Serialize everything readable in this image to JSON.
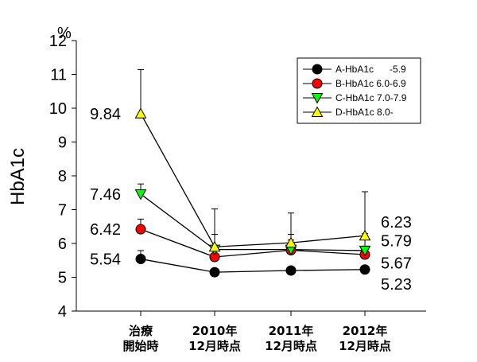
{
  "chart_data": {
    "type": "line",
    "ylabel": "HbA1c",
    "y_unit": "%",
    "ylim": [
      4,
      12
    ],
    "yticks": [
      4,
      5,
      6,
      7,
      8,
      9,
      10,
      11,
      12
    ],
    "categories": [
      [
        "治療",
        "開始時"
      ],
      [
        "2010年",
        "12月時点"
      ],
      [
        "2011年",
        "12月時点"
      ],
      [
        "2012年",
        "12月時点"
      ]
    ],
    "series": [
      {
        "name": "A-HbA1c      -5.9",
        "marker": "circle",
        "color": "#000000",
        "values": [
          5.54,
          5.15,
          5.2,
          5.23
        ],
        "err_up": [
          0.25,
          0.1,
          0.1,
          0.08
        ]
      },
      {
        "name": "B-HbA1c 6.0-6.9",
        "marker": "circle",
        "color": "#ff0000",
        "values": [
          6.42,
          5.6,
          5.8,
          5.67
        ],
        "err_up": [
          0.3,
          0.25,
          0.3,
          0.25
        ]
      },
      {
        "name": "C-HbA1c 7.0-7.9",
        "marker": "triangle-down",
        "color": "#00ff00",
        "values": [
          7.46,
          5.82,
          5.82,
          5.79
        ],
        "err_up": [
          0.3,
          0.45,
          0.45,
          0.5
        ]
      },
      {
        "name": "D-HbA1c 8.0-",
        "marker": "triangle-up",
        "color": "#ffff00",
        "values": [
          9.84,
          5.9,
          6.02,
          6.23
        ],
        "err_up": [
          1.3,
          1.12,
          0.88,
          1.3
        ]
      }
    ],
    "data_labels": [
      {
        "text": "9.84",
        "series": 3,
        "point": 0,
        "side": "left"
      },
      {
        "text": "7.46",
        "series": 2,
        "point": 0,
        "side": "left"
      },
      {
        "text": "6.42",
        "series": 1,
        "point": 0,
        "side": "left"
      },
      {
        "text": "5.54",
        "series": 0,
        "point": 0,
        "side": "left"
      },
      {
        "text": "6.23",
        "series": 3,
        "point": 3,
        "side": "right"
      },
      {
        "text": "5.79",
        "series": 2,
        "point": 3,
        "side": "right"
      },
      {
        "text": "5.67",
        "series": 1,
        "point": 3,
        "side": "right"
      },
      {
        "text": "5.23",
        "series": 0,
        "point": 3,
        "side": "right"
      }
    ],
    "legend_position": "top-right",
    "grid": false
  }
}
